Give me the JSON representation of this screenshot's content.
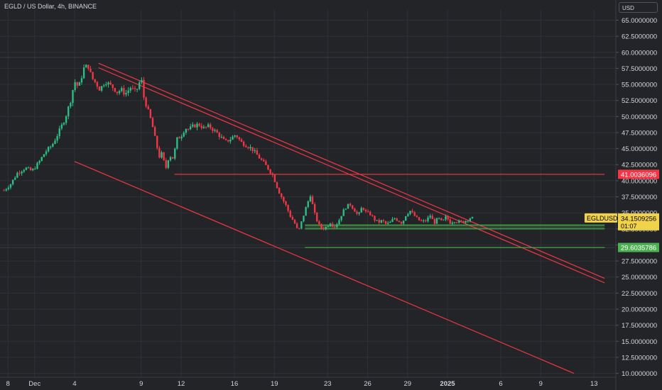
{
  "header": {
    "title": "EGLD / US Dollar, 4h, BINANCE"
  },
  "axis": {
    "currency_label": "USD"
  },
  "colors": {
    "background": "#222428",
    "up": "#2ebd85",
    "down": "#f23645",
    "channel": "#f23645",
    "support": "#4caf50",
    "axis_text": "#d1d4dc",
    "grid": "#2e3036",
    "price_label_bg": "#f0d34b"
  },
  "chart_data": {
    "type": "candlestick",
    "title": "EGLD / US Dollar, 4h, BINANCE",
    "ylabel": "USD",
    "ylim": [
      9.4,
      66.6
    ],
    "y_ticks": [
      "65.0000000",
      "62.5000000",
      "60.0000000",
      "57.5000000",
      "55.0000000",
      "52.5000000",
      "50.0000000",
      "47.5000000",
      "45.0000000",
      "42.5000000",
      "40.0000000",
      "37.5000000",
      "35.0000000",
      "32.5000000",
      "30.0000000",
      "27.5000000",
      "25.0000000",
      "22.5000000",
      "20.0000000",
      "17.5000000",
      "15.0000000",
      "12.5000000",
      "10.0000000"
    ],
    "x_ticks": [
      {
        "label": "8",
        "day": 28,
        "bold": false
      },
      {
        "label": "Dec",
        "day": 30,
        "bold": false
      },
      {
        "label": "4",
        "day": 33,
        "bold": false
      },
      {
        "label": "9",
        "day": 38,
        "bold": false
      },
      {
        "label": "12",
        "day": 41,
        "bold": false
      },
      {
        "label": "16",
        "day": 45,
        "bold": false
      },
      {
        "label": "19",
        "day": 48,
        "bold": false
      },
      {
        "label": "23",
        "day": 52,
        "bold": false
      },
      {
        "label": "26",
        "day": 55,
        "bold": false
      },
      {
        "label": "29",
        "day": 58,
        "bold": false
      },
      {
        "label": "2025",
        "day": 61,
        "bold": true
      },
      {
        "label": "6",
        "day": 65,
        "bold": false
      },
      {
        "label": "9",
        "day": 68,
        "bold": false
      },
      {
        "label": "13",
        "day": 72,
        "bold": false
      }
    ],
    "price_path": [
      [
        27.7,
        38.5
      ],
      [
        28.2,
        39.5
      ],
      [
        28.7,
        41.2
      ],
      [
        29.3,
        42.0
      ],
      [
        29.8,
        41.5
      ],
      [
        30.3,
        42.8
      ],
      [
        30.8,
        44.5
      ],
      [
        31.3,
        45.5
      ],
      [
        31.8,
        47.5
      ],
      [
        32.3,
        49.8
      ],
      [
        32.7,
        52.5
      ],
      [
        33.0,
        55.5
      ],
      [
        33.3,
        54.5
      ],
      [
        33.7,
        57.5
      ],
      [
        34.0,
        58.0
      ],
      [
        34.3,
        56.0
      ],
      [
        34.6,
        55.2
      ],
      [
        34.9,
        54.2
      ],
      [
        35.3,
        55.5
      ],
      [
        35.6,
        55.0
      ],
      [
        35.9,
        54.5
      ],
      [
        36.2,
        53.8
      ],
      [
        36.5,
        54.2
      ],
      [
        36.8,
        53.5
      ],
      [
        37.2,
        54.5
      ],
      [
        37.6,
        53.8
      ],
      [
        38.0,
        56.0
      ],
      [
        38.2,
        53.0
      ],
      [
        38.5,
        51.0
      ],
      [
        38.8,
        49.0
      ],
      [
        39.1,
        46.0
      ],
      [
        39.4,
        43.5
      ],
      [
        39.6,
        44.5
      ],
      [
        39.8,
        41.5
      ],
      [
        40.1,
        44.0
      ],
      [
        40.4,
        43.5
      ],
      [
        40.7,
        46.5
      ],
      [
        41.0,
        47.0
      ],
      [
        41.3,
        48.2
      ],
      [
        41.6,
        48.0
      ],
      [
        41.9,
        48.5
      ],
      [
        42.3,
        48.8
      ],
      [
        42.7,
        48.2
      ],
      [
        43.1,
        48.5
      ],
      [
        43.5,
        47.8
      ],
      [
        43.9,
        47.0
      ],
      [
        44.3,
        46.0
      ],
      [
        44.7,
        46.5
      ],
      [
        45.1,
        47.2
      ],
      [
        45.5,
        46.0
      ],
      [
        45.9,
        45.5
      ],
      [
        46.3,
        45.0
      ],
      [
        46.7,
        44.0
      ],
      [
        47.1,
        43.0
      ],
      [
        47.5,
        42.0
      ],
      [
        47.9,
        40.8
      ],
      [
        48.3,
        38.5
      ],
      [
        48.6,
        37.2
      ],
      [
        48.9,
        36.0
      ],
      [
        49.2,
        34.5
      ],
      [
        49.5,
        33.5
      ],
      [
        49.8,
        32.0
      ],
      [
        50.1,
        34.0
      ],
      [
        50.4,
        36.0
      ],
      [
        50.7,
        37.8
      ],
      [
        51.0,
        35.0
      ],
      [
        51.3,
        33.2
      ],
      [
        51.6,
        32.5
      ],
      [
        51.9,
        32.8
      ],
      [
        52.2,
        33.5
      ],
      [
        52.5,
        32.8
      ],
      [
        52.8,
        33.6
      ],
      [
        53.1,
        35.0
      ],
      [
        53.4,
        36.0
      ],
      [
        53.7,
        36.3
      ],
      [
        54.0,
        35.5
      ],
      [
        54.3,
        34.5
      ],
      [
        54.6,
        36.0
      ],
      [
        54.9,
        35.0
      ],
      [
        55.2,
        34.8
      ],
      [
        55.5,
        34.0
      ],
      [
        55.8,
        33.5
      ],
      [
        56.1,
        33.8
      ],
      [
        56.4,
        33.2
      ],
      [
        56.7,
        33.5
      ],
      [
        57.0,
        34.2
      ],
      [
        57.3,
        33.8
      ],
      [
        57.6,
        33.4
      ],
      [
        57.9,
        34.8
      ],
      [
        58.2,
        35.3
      ],
      [
        58.5,
        34.6
      ],
      [
        58.8,
        33.9
      ],
      [
        59.1,
        33.6
      ],
      [
        59.4,
        33.8
      ],
      [
        59.7,
        34.6
      ],
      [
        60.0,
        33.4
      ],
      [
        60.3,
        34.2
      ],
      [
        60.6,
        33.5
      ],
      [
        60.9,
        34.4
      ],
      [
        61.2,
        33.5
      ],
      [
        61.5,
        33.8
      ],
      [
        61.8,
        33.6
      ],
      [
        62.1,
        33.6
      ],
      [
        62.4,
        33.8
      ],
      [
        62.7,
        34.2
      ],
      [
        63.0,
        34.15
      ]
    ],
    "lines": [
      {
        "name": "channel-upper-outer",
        "kind": "trendline",
        "from": [
          34.8,
          58.3
        ],
        "to": [
          72.8,
          24.8
        ]
      },
      {
        "name": "channel-upper-inner",
        "kind": "trendline",
        "from": [
          34.8,
          57.6
        ],
        "to": [
          72.8,
          24.1
        ]
      },
      {
        "name": "channel-lower",
        "kind": "trendline",
        "from": [
          33.0,
          43.0
        ],
        "to": [
          70.5,
          10.0
        ]
      },
      {
        "name": "resistance",
        "kind": "horizontal",
        "from": [
          40.5,
          41.0036096
        ],
        "to": [
          72.8,
          41.0036096
        ]
      },
      {
        "name": "support",
        "kind": "horizontal",
        "from": [
          50.3,
          29.6035786
        ],
        "to": [
          72.8,
          29.6035786
        ]
      },
      {
        "name": "support-zone-top",
        "kind": "horizontal",
        "from": [
          50.3,
          33.1
        ],
        "to": [
          72.8,
          33.1
        ]
      },
      {
        "name": "support-zone-bottom",
        "kind": "horizontal",
        "from": [
          50.3,
          32.5
        ],
        "to": [
          72.8,
          32.5
        ]
      }
    ],
    "zone": {
      "from_day": 50.3,
      "to_day": 72.8,
      "low": 32.5,
      "high": 33.1
    },
    "reference_lines": [
      {
        "name": "prior-high",
        "value": 59.2
      },
      {
        "name": "prior-low",
        "value": 29.6
      }
    ],
    "price_labels": [
      {
        "name": "resistance-price-label",
        "value": 41.0036096,
        "text": "41.0036096",
        "color": "#f23645",
        "text_color": "#ffffff"
      },
      {
        "name": "support-price-label",
        "value": 29.6035786,
        "text": "29.6035786",
        "color": "#4caf50",
        "text_color": "#ffffff"
      }
    ],
    "current": {
      "symbol": "EGLDUSD",
      "price": 34.1509256,
      "price_text": "34.1509256",
      "countdown": "01:07"
    }
  }
}
